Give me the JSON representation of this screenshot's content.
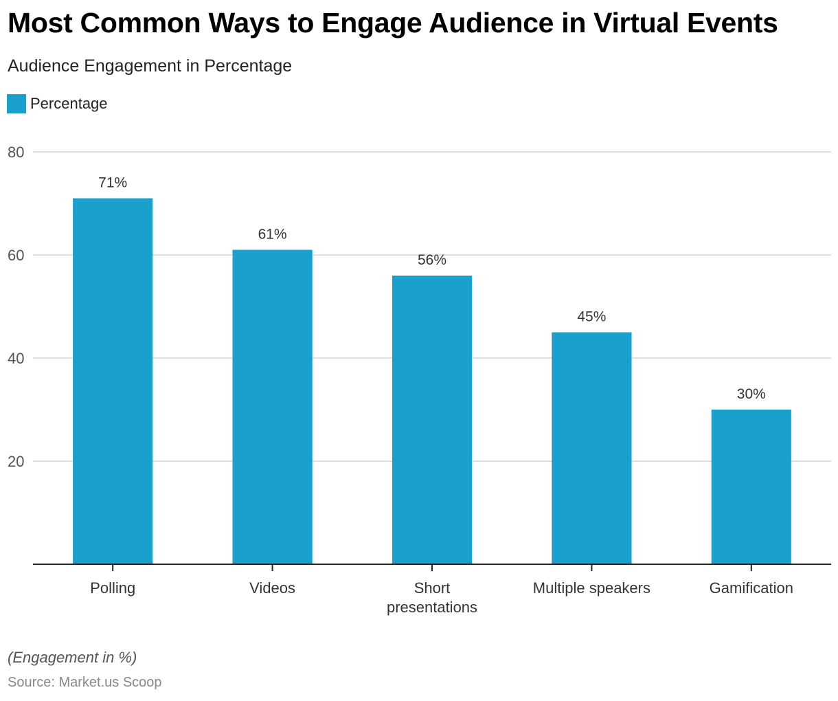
{
  "header": {
    "title": "Most Common Ways to Engage Audience in Virtual Events",
    "subtitle": "Audience Engagement in Percentage"
  },
  "legend": {
    "label": "Percentage",
    "color": "#1aa0cd"
  },
  "footer": {
    "note": "(Engagement in %)",
    "source": "Source: Market.us Scoop"
  },
  "chart_data": {
    "type": "bar",
    "title": "Most Common Ways to Engage Audience in Virtual Events",
    "subtitle": "Audience Engagement in Percentage",
    "xlabel": "",
    "ylabel": "",
    "categories": [
      [
        "Polling"
      ],
      [
        "Videos"
      ],
      [
        "Short",
        "presentations"
      ],
      [
        "Multiple speakers"
      ],
      [
        "Gamification"
      ]
    ],
    "series": [
      {
        "name": "Percentage",
        "color": "#1aa0cd",
        "values": [
          71,
          61,
          56,
          45,
          30
        ]
      }
    ],
    "data_labels": [
      "71%",
      "61%",
      "56%",
      "45%",
      "30%"
    ],
    "ylim": [
      0,
      80
    ],
    "yticks": [
      20,
      40,
      60,
      80
    ],
    "grid": true,
    "legend_position": "top-left"
  }
}
